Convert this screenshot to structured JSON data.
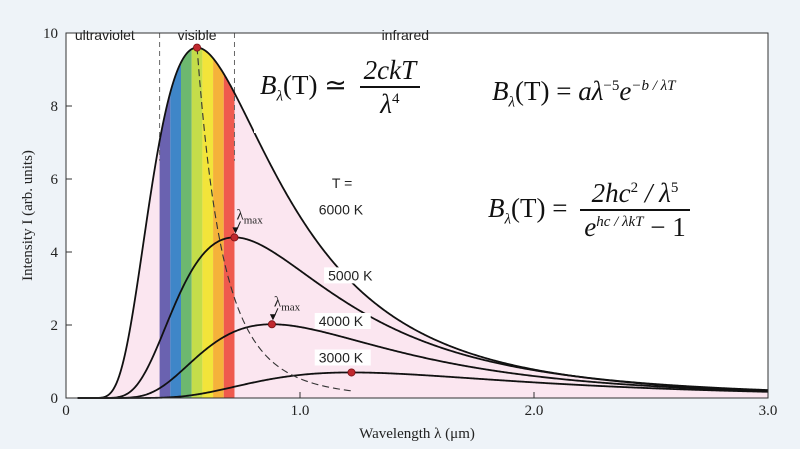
{
  "chart_data": {
    "type": "line",
    "xlabel": "Wavelength  λ  (μm)",
    "ylabel": "Intensity  I  (arb. units)",
    "xlim": [
      0,
      3.0
    ],
    "ylim": [
      0,
      10
    ],
    "x_ticks": [
      "0",
      "1.0",
      "2.0",
      "3.0"
    ],
    "y_ticks": [
      "0",
      "2",
      "4",
      "6",
      "8",
      "10"
    ],
    "regions": [
      {
        "label": "ultraviolet",
        "from": 0.0,
        "to": 0.4
      },
      {
        "label": "visible",
        "from": 0.4,
        "to": 0.72
      },
      {
        "label": "infrared",
        "from": 0.72,
        "to": 3.0
      }
    ],
    "visible_band_colors": [
      "#6a62b0",
      "#3f86c8",
      "#6db86f",
      "#c4dd4a",
      "#f2e43a",
      "#f5b23a",
      "#ef5a4e"
    ],
    "fill_color": "#fbe6f0",
    "temperature_header": "T =",
    "series": [
      {
        "name": "6000 K",
        "T": 6000,
        "peak": {
          "x": 0.56,
          "y": 9.6
        },
        "label_x": 1.08,
        "label_y": 5.05
      },
      {
        "name": "5000 K",
        "T": 5000,
        "peak": {
          "x": 0.72,
          "y": 4.4
        },
        "label_x": 1.12,
        "label_y": 3.25
      },
      {
        "name": "4000 K",
        "T": 4000,
        "peak": {
          "x": 0.88,
          "y": 2.02
        },
        "label_x": 1.08,
        "label_y": 2.0
      },
      {
        "name": "3000 K",
        "T": 3000,
        "peak": {
          "x": 1.22,
          "y": 0.7
        },
        "label_x": 1.08,
        "label_y": 1.0
      }
    ],
    "annotations": [
      {
        "text": "λ",
        "sub": "max",
        "x": 0.72,
        "y": 4.4
      },
      {
        "text": "λ",
        "sub": "max",
        "x": 0.88,
        "y": 2.02
      }
    ],
    "formulas": {
      "rayleigh_jeans": {
        "lhs": "B",
        "lhs_sub": "λ",
        "lhs_arg": "(T) ≃",
        "num": "2ckT",
        "den": "λ",
        "den_sup": "4"
      },
      "wien": {
        "lhs": "B",
        "lhs_sub": "λ",
        "lhs_arg": "(T) = ",
        "body": "aλ",
        "sup1": "−5",
        "e": "e",
        "sup2": "−b / λT"
      },
      "planck": {
        "lhs": "B",
        "lhs_sub": "λ",
        "lhs_arg": "(T) =",
        "num": "2hc",
        "num_sup": "2",
        "num_tail": " / λ",
        "num_sup2": "5",
        "den_e": "e",
        "den_sup": "hc / λkT",
        "den_tail": " − 1"
      }
    }
  }
}
